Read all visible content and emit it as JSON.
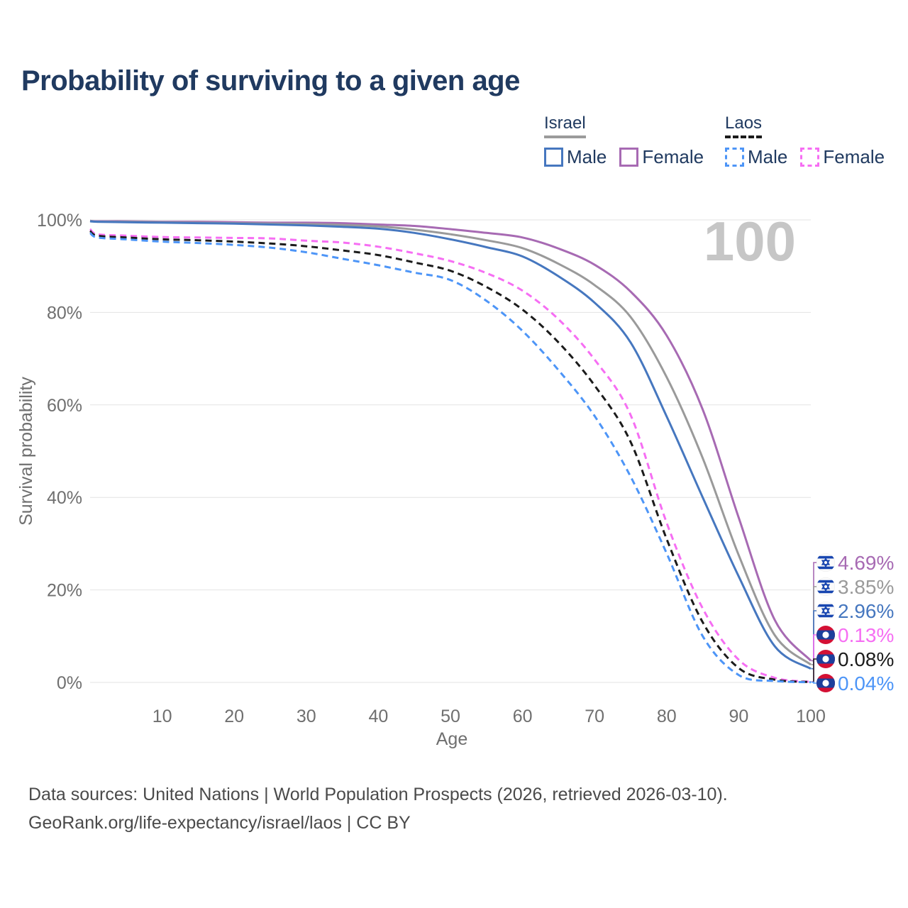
{
  "title": "Probability of surviving to a given age",
  "watermark": "100",
  "legend": {
    "groups": [
      {
        "country": "Israel",
        "style": "solid",
        "underline_color": "#9b9b9b",
        "items": [
          {
            "label": "Male",
            "color": "#4677bf",
            "dashed": false
          },
          {
            "label": "Female",
            "color": "#a76ab3",
            "dashed": false
          }
        ]
      },
      {
        "country": "Laos",
        "style": "dashed",
        "underline_color": "#1b1b1b",
        "items": [
          {
            "label": "Male",
            "color": "#4d95f7",
            "dashed": true
          },
          {
            "label": "Female",
            "color": "#f66ef3",
            "dashed": true
          }
        ]
      }
    ]
  },
  "chart_data": {
    "type": "line",
    "title": "Probability of surviving to a given age",
    "xlabel": "Age",
    "ylabel": "Survival probability",
    "xlim": [
      0,
      100
    ],
    "ylim": [
      0,
      100
    ],
    "grid": "horizontal-only",
    "gridline_color": "#e3e3e3",
    "axis_text_color": "#6f6f6f",
    "legend_position": "top-right",
    "x_ticks": [
      10,
      20,
      30,
      40,
      50,
      60,
      70,
      80,
      90,
      100
    ],
    "y_ticks": [
      {
        "value": 0,
        "label": "0%"
      },
      {
        "value": 20,
        "label": "20%"
      },
      {
        "value": 40,
        "label": "40%"
      },
      {
        "value": 60,
        "label": "60%"
      },
      {
        "value": 80,
        "label": "80%"
      },
      {
        "value": 100,
        "label": "100%"
      }
    ],
    "x": [
      0,
      1,
      5,
      10,
      15,
      20,
      25,
      30,
      35,
      40,
      45,
      50,
      55,
      60,
      65,
      70,
      75,
      80,
      85,
      90,
      95,
      100
    ],
    "series": [
      {
        "name": "Israel Female",
        "country": "Israel",
        "flag": "israel",
        "color": "#a76ab3",
        "dashed": false,
        "end_label": "4.69%",
        "values": [
          99.8,
          99.7,
          99.7,
          99.6,
          99.6,
          99.5,
          99.4,
          99.4,
          99.3,
          99.0,
          98.7,
          98.0,
          97.2,
          96.2,
          93.8,
          90.3,
          84.5,
          75.0,
          59.0,
          35.6,
          13.5,
          4.69
        ]
      },
      {
        "name": "Israel Both sexes",
        "country": "Israel",
        "flag": "israel",
        "color": "#9a9a9a",
        "dashed": false,
        "end_label": "3.85%",
        "values": [
          99.8,
          99.6,
          99.6,
          99.5,
          99.4,
          99.3,
          99.2,
          99.1,
          98.9,
          98.6,
          97.9,
          96.9,
          95.6,
          93.9,
          90.5,
          85.9,
          79.0,
          66.0,
          48.5,
          27.5,
          10.2,
          3.85
        ]
      },
      {
        "name": "Israel Male",
        "country": "Israel",
        "flag": "israel",
        "color": "#4677bf",
        "dashed": false,
        "end_label": "2.96%",
        "values": [
          99.7,
          99.6,
          99.5,
          99.4,
          99.3,
          99.2,
          99.0,
          98.8,
          98.5,
          98.1,
          97.2,
          95.8,
          94.1,
          92.1,
          87.8,
          82.1,
          73.5,
          57.5,
          40.0,
          22.9,
          7.8,
          2.96
        ]
      },
      {
        "name": "Laos Female",
        "country": "Laos",
        "flag": "laos",
        "color": "#f66ef3",
        "dashed": true,
        "end_label": "0.13%",
        "values": [
          98.0,
          96.9,
          96.6,
          96.3,
          96.2,
          96.1,
          96.0,
          95.5,
          95.1,
          94.2,
          92.8,
          91.1,
          88.5,
          84.7,
          78.5,
          69.8,
          57.8,
          34.5,
          16.0,
          4.9,
          1.0,
          0.13
        ]
      },
      {
        "name": "Laos Both sexes",
        "country": "Laos",
        "flag": "laos",
        "color": "#1b1b1b",
        "dashed": true,
        "end_label": "0.08%",
        "values": [
          97.6,
          96.6,
          96.2,
          95.8,
          95.6,
          95.3,
          94.9,
          94.3,
          93.4,
          92.4,
          90.8,
          89.0,
          85.5,
          80.6,
          73.5,
          64.2,
          52.0,
          31.0,
          13.0,
          3.1,
          0.6,
          0.08
        ]
      },
      {
        "name": "Laos Male",
        "country": "Laos",
        "flag": "laos",
        "color": "#4d95f7",
        "dashed": true,
        "end_label": "0.04%",
        "values": [
          97.2,
          96.2,
          95.8,
          95.3,
          95.0,
          94.6,
          94.0,
          93.0,
          91.6,
          90.2,
          88.6,
          87.0,
          82.5,
          76.0,
          67.5,
          57.6,
          44.5,
          27.9,
          10.0,
          1.6,
          0.3,
          0.04
        ]
      }
    ]
  },
  "flag_colors": {
    "israel_blue": "#1846b0",
    "laos_red": "#d41034",
    "laos_blue": "#1d3f9c"
  },
  "footer": {
    "line1": "Data sources: United Nations | World Population Prospects (2026, retrieved 2026-03-10).",
    "line2": "GeoRank.org/life-expectancy/israel/laos | CC BY"
  }
}
